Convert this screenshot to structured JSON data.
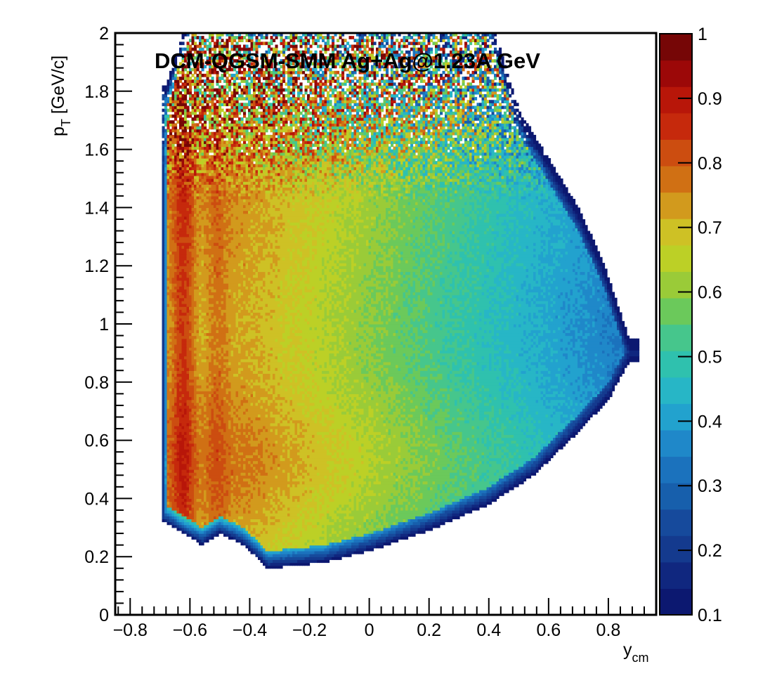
{
  "chart_data": {
    "type": "heatmap",
    "title": "DCM-QGSM-SMM Ag+Ag@1.23A GeV",
    "xlabel": {
      "main": "y",
      "sub": "cm"
    },
    "ylabel": {
      "main": "p",
      "sub": "T",
      "rest": " [GeV/c]"
    },
    "xlim": [
      -0.85,
      0.96
    ],
    "ylim": [
      0,
      2
    ],
    "x_ticks": [
      -0.8,
      -0.6,
      -0.4,
      -0.2,
      0,
      0.2,
      0.4,
      0.6,
      0.8
    ],
    "x_tick_labels": [
      "−0.8",
      "−0.6",
      "−0.4",
      "−0.2",
      "0",
      "0.2",
      "0.4",
      "0.6",
      "0.8"
    ],
    "y_ticks": [
      0,
      0.2,
      0.4,
      0.6,
      0.8,
      1,
      1.2,
      1.4,
      1.6,
      1.8,
      2
    ],
    "y_tick_labels": [
      "0",
      "0.2",
      "0.4",
      "0.6",
      "0.8",
      "1",
      "1.2",
      "1.4",
      "1.6",
      "1.8",
      "2"
    ],
    "zlim": [
      0.1,
      1
    ],
    "z_ticks": [
      0.1,
      0.2,
      0.3,
      0.4,
      0.5,
      0.6,
      0.7,
      0.8,
      0.9,
      1
    ],
    "z_tick_labels": [
      "0.1",
      "0.2",
      "0.3",
      "0.4",
      "0.5",
      "0.6",
      "0.7",
      "0.8",
      "0.9",
      "1"
    ],
    "palette": [
      "#0c1870",
      "#10277f",
      "#143a8e",
      "#164a9c",
      "#175fac",
      "#1b72bd",
      "#1f88c9",
      "#22a2ce",
      "#27b6c6",
      "#2fc1ae",
      "#46c68c",
      "#6bc95b",
      "#9acb38",
      "#bcd026",
      "#cec125",
      "#d29a1d",
      "#d07014",
      "#cc4d10",
      "#c6290c",
      "#b81609",
      "#9c0808",
      "#760606"
    ],
    "grid": false,
    "legend": "none",
    "colorbar": "right",
    "description_points": [
      {
        "y": -0.6,
        "pt": 1.0,
        "z": 0.8
      },
      {
        "y": -0.6,
        "pt": 0.7,
        "z": 0.7
      },
      {
        "y": -0.2,
        "pt": 0.6,
        "z": 0.65
      },
      {
        "y": 0.2,
        "pt": 0.7,
        "z": 0.55
      },
      {
        "y": 0.6,
        "pt": 0.8,
        "z": 0.42
      },
      {
        "y": 0.2,
        "pt": 1.8,
        "z": 0.4
      }
    ]
  }
}
